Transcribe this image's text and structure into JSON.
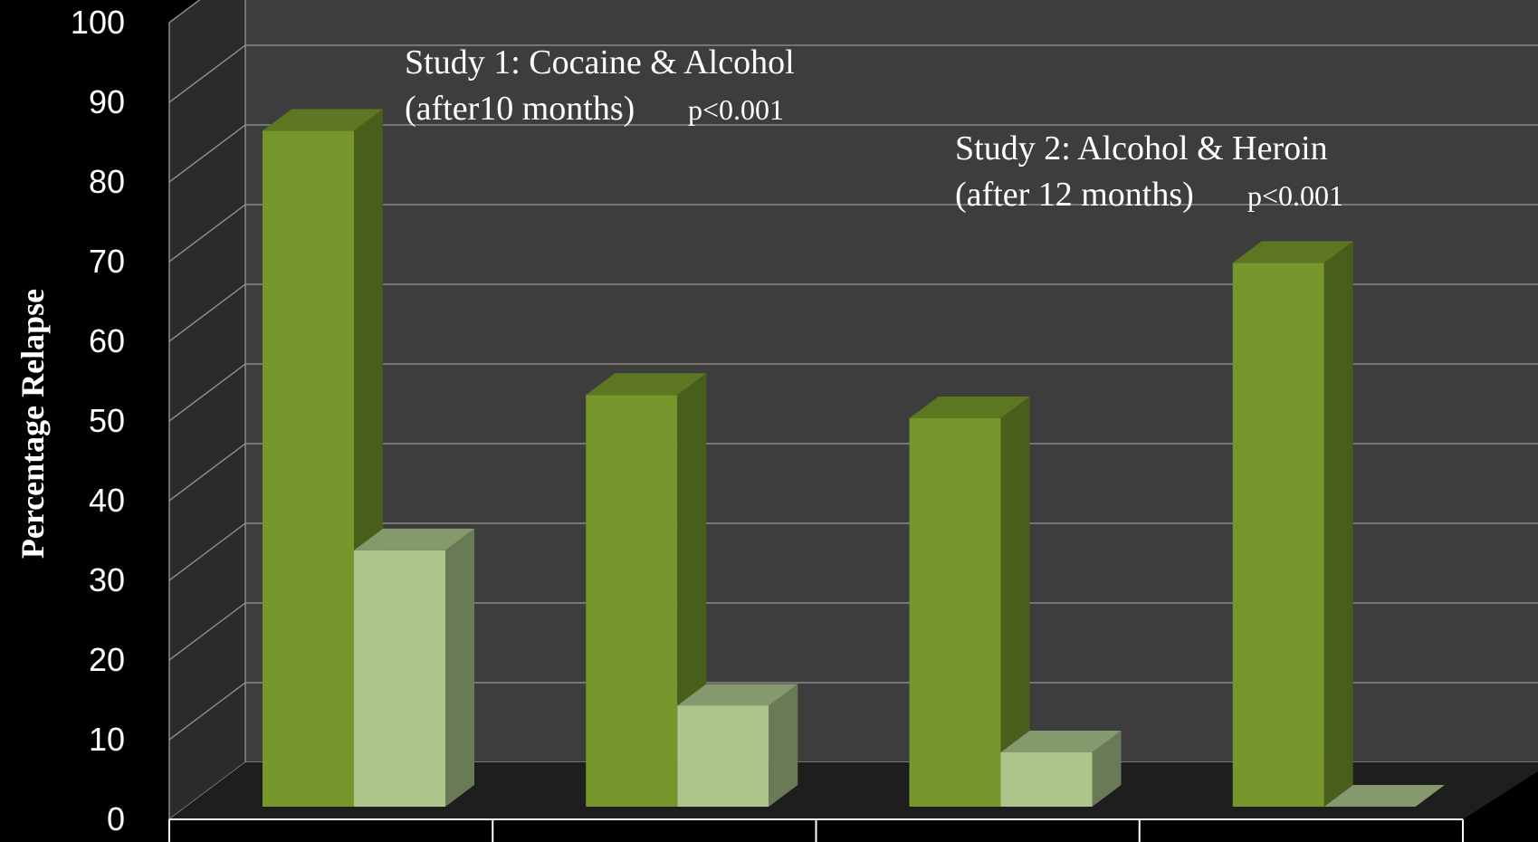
{
  "chart_data": {
    "type": "bar",
    "ylabel": "Percentage Relapse",
    "ylim": [
      0,
      100
    ],
    "ytick_step": 10,
    "grid": true,
    "three_d": true,
    "categories": [
      "",
      "",
      "",
      ""
    ],
    "series": [
      {
        "color": "#76972C",
        "values": [
          87,
          53,
          50,
          70
        ]
      },
      {
        "color": "#ABC58A",
        "values": [
          33,
          13,
          7,
          0
        ]
      }
    ],
    "annotations": [
      {
        "line1": "Study 1: Cocaine & Alcohol",
        "line2": "(after10 months)",
        "p": "p<0.001"
      },
      {
        "line1": "Study 2: Alcohol & Heroin",
        "line2": "(after 12 months)",
        "p": "p<0.001"
      }
    ]
  }
}
